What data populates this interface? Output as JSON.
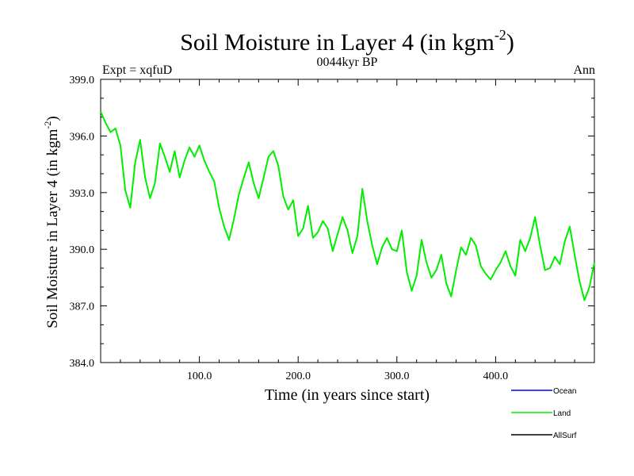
{
  "chart_data": {
    "type": "line",
    "title": "Soil Moisture in Layer 4 (in kgm",
    "title_superscript": "-2",
    "title_suffix": ")",
    "subtitle": "0044kyr BP",
    "left_label": "Expt = xqfuD",
    "right_label": "Ann",
    "xlabel": "Time (in years since start)",
    "ylabel": "Soil Moisture in Layer 4 (in kgm",
    "ylabel_superscript": "-2",
    "ylabel_suffix": ")",
    "xlim": [
      0,
      500
    ],
    "ylim": [
      384,
      399
    ],
    "x_ticks": [
      100,
      200,
      300,
      400
    ],
    "x_tick_labels": [
      "100.0",
      "200.0",
      "300.0",
      "400.0"
    ],
    "y_ticks": [
      384,
      387,
      390,
      393,
      396,
      399
    ],
    "y_tick_labels": [
      "384.0",
      "387.0",
      "390.0",
      "393.0",
      "396.0",
      "399.0"
    ],
    "legend": [
      {
        "name": "Ocean",
        "color": "#0000ff"
      },
      {
        "name": "Land",
        "color": "#00ee00"
      },
      {
        "name": "AllSurf",
        "color": "#000000"
      }
    ],
    "series": [
      {
        "name": "Land",
        "color": "#00ee00",
        "x": [
          0,
          5,
          10,
          15,
          20,
          25,
          30,
          35,
          40,
          45,
          50,
          55,
          60,
          65,
          70,
          75,
          80,
          85,
          90,
          95,
          100,
          105,
          110,
          115,
          120,
          125,
          130,
          135,
          140,
          145,
          150,
          155,
          160,
          165,
          170,
          175,
          180,
          185,
          190,
          195,
          200,
          205,
          210,
          215,
          220,
          225,
          230,
          235,
          240,
          245,
          250,
          255,
          260,
          265,
          270,
          275,
          280,
          285,
          290,
          295,
          300,
          305,
          310,
          315,
          320,
          325,
          330,
          335,
          340,
          345,
          350,
          355,
          360,
          365,
          370,
          375,
          380,
          385,
          390,
          395,
          400,
          405,
          410,
          415,
          420,
          425,
          430,
          435,
          440,
          445,
          450,
          455,
          460,
          465,
          470,
          475,
          480,
          485,
          490,
          495,
          500
        ],
        "values": [
          397.3,
          396.7,
          396.2,
          396.4,
          395.5,
          393.1,
          392.2,
          394.6,
          395.8,
          393.8,
          392.7,
          393.5,
          395.6,
          394.9,
          394.1,
          395.2,
          393.8,
          394.7,
          395.4,
          394.9,
          395.5,
          394.7,
          394.1,
          393.6,
          392.2,
          391.2,
          390.5,
          391.6,
          392.9,
          393.8,
          394.6,
          393.5,
          392.7,
          393.8,
          394.9,
          395.2,
          394.4,
          392.8,
          392.1,
          392.6,
          390.7,
          391.1,
          392.3,
          390.6,
          390.9,
          391.5,
          391.1,
          389.9,
          390.8,
          391.7,
          391.0,
          389.8,
          390.7,
          393.2,
          391.5,
          390.2,
          389.2,
          390.1,
          390.6,
          390.0,
          389.9,
          391.0,
          388.8,
          387.8,
          388.6,
          390.5,
          389.3,
          388.5,
          388.9,
          389.7,
          388.2,
          387.5,
          388.9,
          390.1,
          389.7,
          390.6,
          390.2,
          389.1,
          388.7,
          388.4,
          388.9,
          389.3,
          389.9,
          389.1,
          388.6,
          390.5,
          389.9,
          390.6,
          391.7,
          390.2,
          388.9,
          389.0,
          389.6,
          389.2,
          390.4,
          391.2,
          389.7,
          388.3,
          387.3,
          388.0,
          389.3
        ]
      }
    ]
  }
}
